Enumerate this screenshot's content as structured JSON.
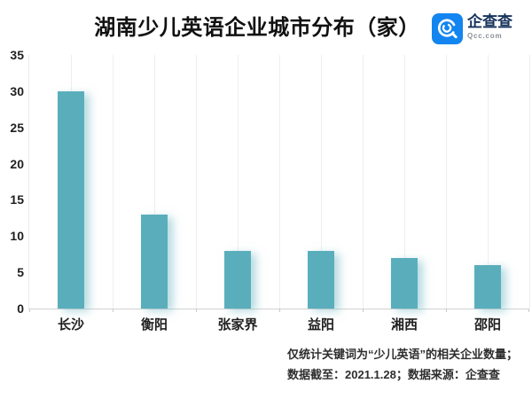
{
  "header": {
    "title": "湖南少儿英语企业城市分布（家）",
    "logo": {
      "name": "企查查",
      "domain": "Qcc.com",
      "brand_color": "#1285F0",
      "name_color": "#16325c"
    }
  },
  "chart_data": {
    "type": "bar",
    "title": "湖南少儿英语企业城市分布（家）",
    "categories": [
      "长沙",
      "衡阳",
      "张家界",
      "益阳",
      "湘西",
      "邵阳"
    ],
    "values": [
      30,
      13,
      8,
      8,
      7,
      6
    ],
    "xlabel": "",
    "ylabel": "",
    "ylim": [
      0,
      35
    ],
    "yticks": [
      0,
      5,
      10,
      15,
      20,
      25,
      30,
      35
    ],
    "bar_color": "#5AAEBC",
    "grid": "vertical-only",
    "legend": "none"
  },
  "footnote": {
    "line1": "仅统计关键词为“少儿英语”的相关企业数量；",
    "line2": "数据截至：2021.1.28；数据来源：企查查"
  }
}
